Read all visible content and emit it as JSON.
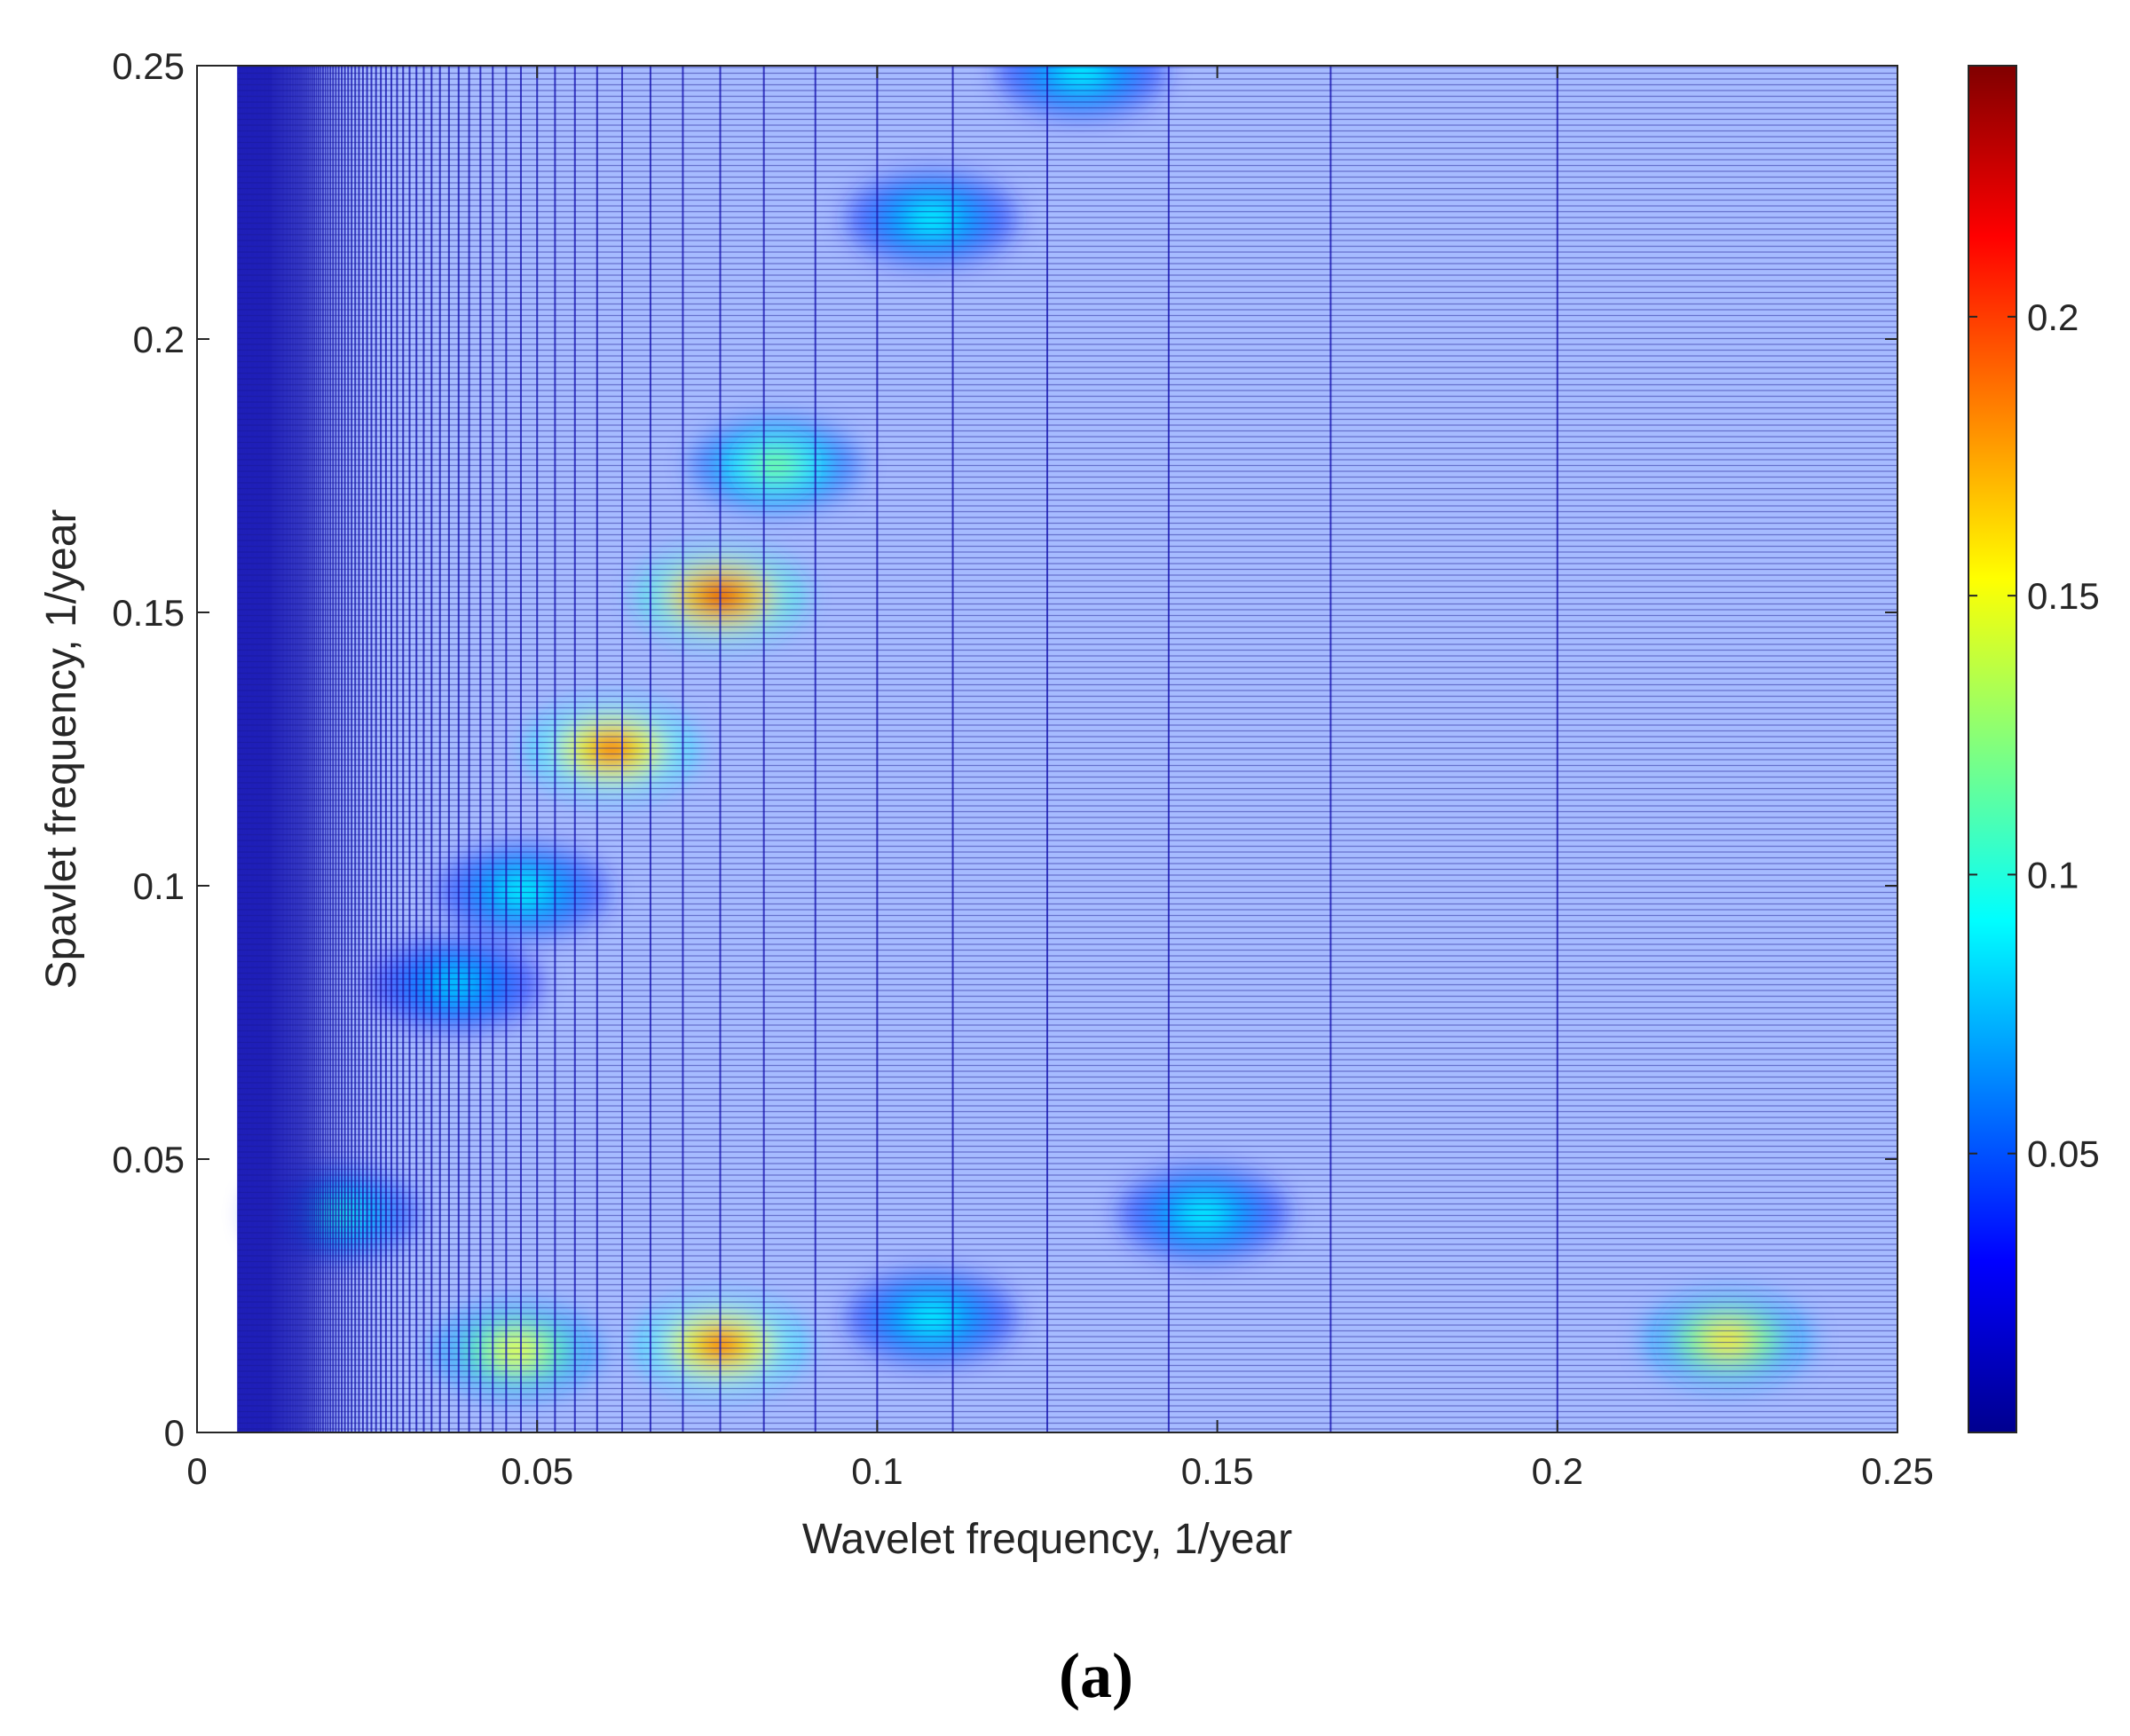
{
  "chart_data": {
    "type": "heatmap",
    "title": "",
    "xlabel": "Wavelet frequency, 1/year",
    "ylabel": "Spavlet frequency, 1/year",
    "xlim": [
      0,
      0.25
    ],
    "ylim": [
      0,
      0.25
    ],
    "x_ticks": [
      "0",
      "0.05",
      "0.1",
      "0.15",
      "0.2",
      "0.25"
    ],
    "y_ticks": [
      "0",
      "0.05",
      "0.1",
      "0.15",
      "0.2",
      "0.25"
    ],
    "colorbar": {
      "colormap": "jet",
      "range": [
        0,
        0.245
      ],
      "ticks": [
        "0.05",
        "0.1",
        "0.15",
        "0.2"
      ]
    },
    "grid_x_start": 0.006,
    "grid_x_end": 0.25,
    "background_value": 0.045,
    "hotspots": [
      {
        "x": 0.061,
        "y": 0.125,
        "value": 0.2
      },
      {
        "x": 0.077,
        "y": 0.153,
        "value": 0.22
      },
      {
        "x": 0.077,
        "y": 0.016,
        "value": 0.2
      },
      {
        "x": 0.047,
        "y": 0.015,
        "value": 0.15
      },
      {
        "x": 0.085,
        "y": 0.177,
        "value": 0.12
      },
      {
        "x": 0.048,
        "y": 0.099,
        "value": 0.09
      },
      {
        "x": 0.038,
        "y": 0.082,
        "value": 0.08
      },
      {
        "x": 0.02,
        "y": 0.04,
        "value": 0.1
      },
      {
        "x": 0.225,
        "y": 0.017,
        "value": 0.16
      },
      {
        "x": 0.108,
        "y": 0.222,
        "value": 0.09
      },
      {
        "x": 0.13,
        "y": 0.249,
        "value": 0.09
      },
      {
        "x": 0.148,
        "y": 0.04,
        "value": 0.09
      },
      {
        "x": 0.108,
        "y": 0.021,
        "value": 0.09
      }
    ]
  },
  "caption": "(a)"
}
